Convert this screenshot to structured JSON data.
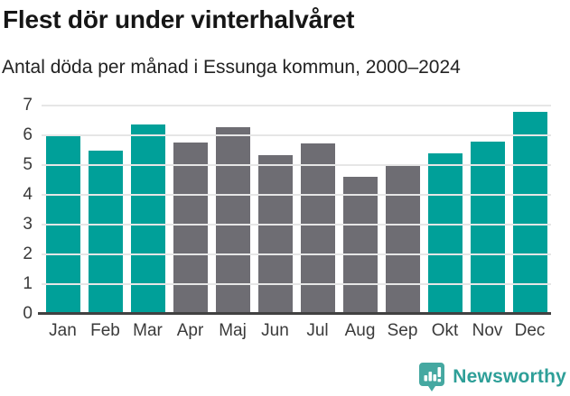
{
  "header": {
    "title": "Flest dör under vinterhalvåret",
    "subtitle": "Antal döda per månad i Essunga kommun, 2000–2024"
  },
  "chart_data": {
    "type": "bar",
    "title": "Flest dör under vinterhalvåret",
    "subtitle": "Antal döda per månad i Essunga kommun, 2000–2024",
    "categories": [
      "Jan",
      "Feb",
      "Mar",
      "Apr",
      "Maj",
      "Jun",
      "Jul",
      "Aug",
      "Sep",
      "Okt",
      "Nov",
      "Dec"
    ],
    "values": [
      6.04,
      5.48,
      6.36,
      5.76,
      6.28,
      5.32,
      5.72,
      4.6,
      5.04,
      5.4,
      5.8,
      6.8
    ],
    "highlight": [
      true,
      true,
      true,
      false,
      false,
      false,
      false,
      false,
      false,
      true,
      true,
      true
    ],
    "xlabel": "",
    "ylabel": "",
    "ylim": [
      0,
      7
    ],
    "yticks": [
      0,
      1,
      2,
      3,
      4,
      5,
      6,
      7
    ],
    "grid": true,
    "legend": "none"
  },
  "colors": {
    "bar_highlight": "#00a099",
    "bar_default": "#6e6d73",
    "gridline": "#e6e6e6",
    "axis_line": "#414141",
    "axis_text": "#3a3a3a",
    "logo_icon": "#45a8a1",
    "logo_text": "#2e9f98"
  },
  "footer": {
    "brand": "Newsworthy"
  }
}
